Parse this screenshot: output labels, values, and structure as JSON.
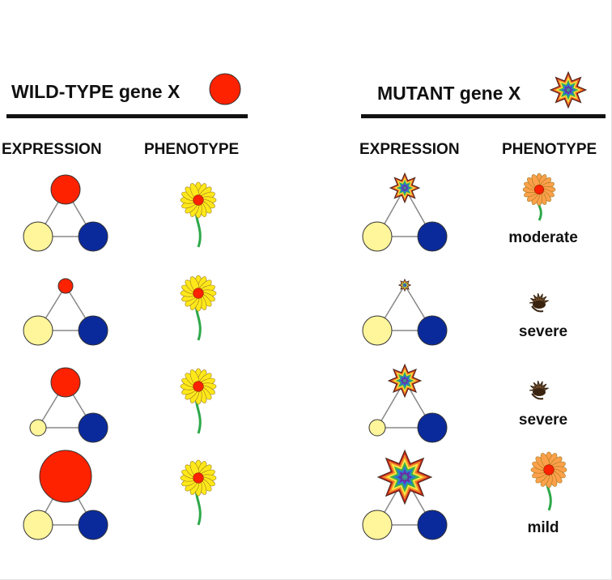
{
  "colors": {
    "red": "#ff2200",
    "yellow": "#fff59a",
    "blue": "#0a2a9c",
    "line": "#888888",
    "petal_yellow": "#ffe81a",
    "petal_orange": "#ffa04a",
    "stem": "#2ea84a",
    "dead": "#6b4a2a"
  },
  "wild": {
    "title": "WILD-TYPE gene X",
    "expression_label": "EXPRESSION",
    "phenotype_label": "PHENOTYPE"
  },
  "mutant": {
    "title": "MUTANT gene X",
    "expression_label": "EXPRESSION",
    "phenotype_label": "PHENOTYPE"
  },
  "rows": [
    {
      "mutant_severity": "moderate"
    },
    {
      "mutant_severity": "severe"
    },
    {
      "mutant_severity": "severe"
    },
    {
      "mutant_severity": "mild"
    }
  ]
}
